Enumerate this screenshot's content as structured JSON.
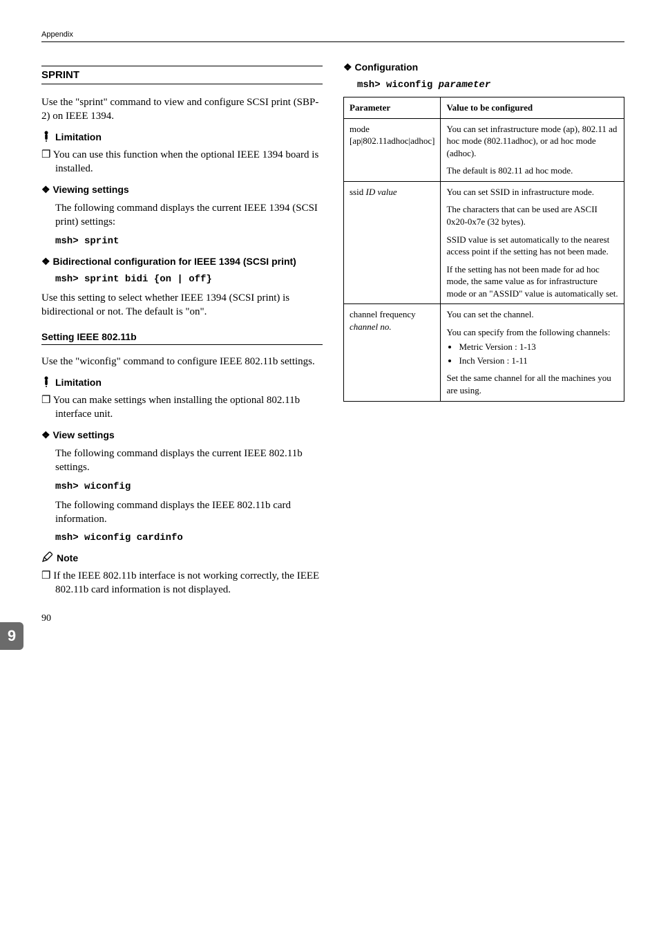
{
  "page": {
    "header": "Appendix",
    "sideTab": "9",
    "pageNumber": "90"
  },
  "leftCol": {
    "sprintTitle": "SPRINT",
    "sprintIntro": "Use the \"sprint\" command to view and configure SCSI print (SBP-2) on IEEE 1394.",
    "limitationHeading": "Limitation",
    "sprintLimitItem": "You can use this function when the optional IEEE 1394 board is installed.",
    "viewingSettingsHeading": "Viewing settings",
    "viewingSettingsBody": "The following command displays the current IEEE 1394 (SCSI print) settings:",
    "viewingSettingsCode": "msh> sprint",
    "bidiHeading": "Bidirectional configuration for IEEE 1394 (SCSI print)",
    "bidiCode": "msh> sprint bidi {on | off}",
    "bidiBody": "Use this setting to select whether IEEE 1394 (SCSI print) is bidirectional or not. The default is \"on\".",
    "ieeeTitle": "Setting IEEE 802.11b",
    "ieeeIntro": "Use the \"wiconfig\" command to configure IEEE 802.11b settings.",
    "ieeeLimitItem": "You can make settings when installing the optional 802.11b interface unit.",
    "viewSettingsHeading": "View settings",
    "viewSettingsBody1": "The following command displays the current IEEE 802.11b settings.",
    "viewSettingsCode1": "msh> wiconfig",
    "viewSettingsBody2": "The following command displays the IEEE 802.11b card information.",
    "viewSettingsCode2": "msh> wiconfig cardinfo",
    "noteHeading": "Note",
    "noteItem": "If the IEEE 802.11b interface is not working correctly, the IEEE 802.11b card information is not displayed."
  },
  "rightCol": {
    "configHeading": "Configuration",
    "configCodePrefix": "msh> wiconfig ",
    "configCodeParam": "parameter",
    "table": {
      "headParam": "Parameter",
      "headValue": "Value to be configured",
      "rows": [
        {
          "param": "mode\n[ap|802.11adhoc|adhoc]",
          "paramItalic": false,
          "valueParts": [
            "You can set infrastructure mode (ap), 802.11 ad hoc mode (802.11adhoc), or ad hoc mode (adhoc).",
            "The default is 802.11 ad hoc mode."
          ]
        },
        {
          "param": "ssid ",
          "paramSuffixItalic": "ID value",
          "valueParts": [
            "You can set SSID in infrastructure mode.",
            "The characters that can be used are ASCII 0x20-0x7e (32 bytes).",
            "SSID value is set automatically to the nearest access point if the setting has not been made.",
            "If the setting has not been made for ad hoc mode, the same value as for infrastructure mode or an \"ASSID\" value is automatically set."
          ]
        },
        {
          "param": "channel frequency\n",
          "paramLine2Italic": "channel no.",
          "valueParts": [
            "You can set the channel.",
            "You can specify from the following channels:"
          ],
          "bullets": [
            "Metric Version : 1-13",
            "Inch Version : 1-11"
          ],
          "valueAfter": "Set the same channel for all the machines you are using."
        }
      ]
    }
  }
}
